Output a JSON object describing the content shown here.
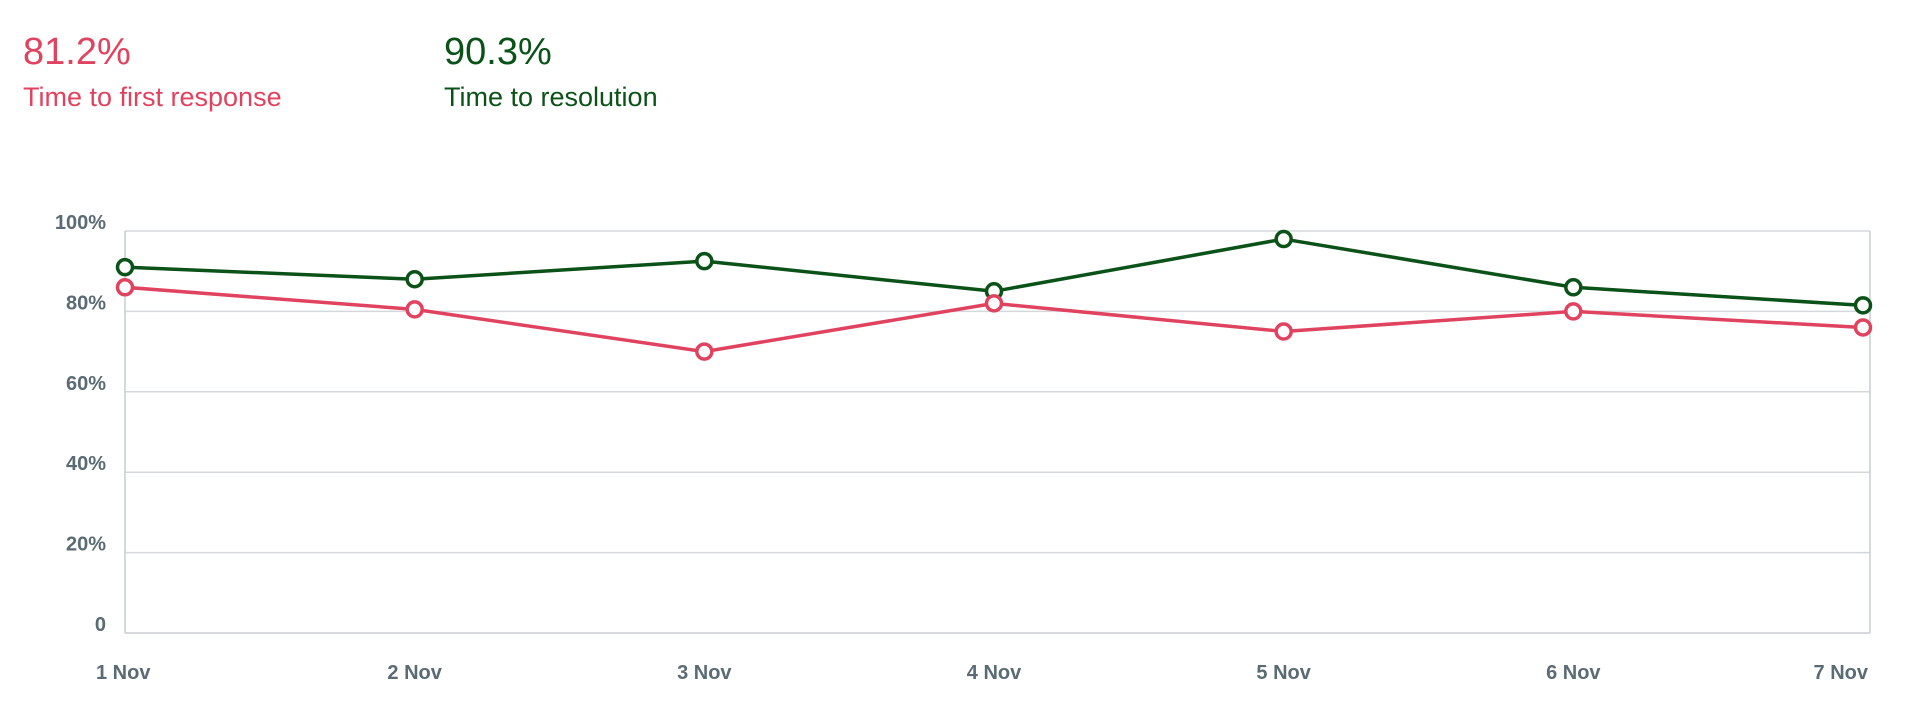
{
  "summary": {
    "first_response": {
      "value": "81.2%",
      "label": "Time to first response",
      "color": "#e0435f"
    },
    "resolution": {
      "value": "90.3%",
      "label": "Time to resolution",
      "color": "#0b5218"
    }
  },
  "chart_data": {
    "type": "line",
    "categories": [
      "1 Nov",
      "2 Nov",
      "3 Nov",
      "4 Nov",
      "5 Nov",
      "6 Nov",
      "7 Nov"
    ],
    "series": [
      {
        "key": "resolution",
        "color": "#0b5218",
        "values": [
          91,
          88,
          92.5,
          85,
          98,
          86,
          81.5
        ]
      },
      {
        "key": "first_response",
        "color": "#e0435f",
        "values": [
          86,
          80.5,
          70,
          82,
          75,
          80,
          76
        ]
      }
    ],
    "ylim": [
      0,
      100
    ],
    "yticks": [
      0,
      20,
      40,
      60,
      80,
      100
    ],
    "ytick_labels": [
      "0",
      "20%",
      "40%",
      "60%",
      "80%",
      "100%"
    ],
    "grid": true,
    "title": "",
    "xlabel": "",
    "ylabel": ""
  }
}
